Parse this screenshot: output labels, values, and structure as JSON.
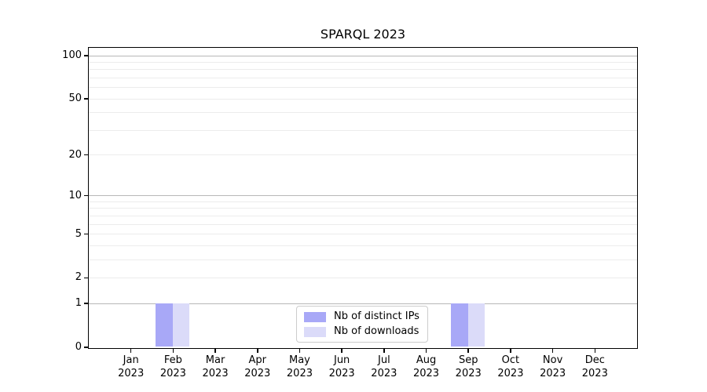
{
  "figure": {
    "background": "#ffffff"
  },
  "chart_data": {
    "type": "bar",
    "title": "SPARQL 2023",
    "xlabel": "",
    "ylabel": "",
    "categories": [
      "Jan 2023",
      "Feb 2023",
      "Mar 2023",
      "Apr 2023",
      "May 2023",
      "Jun 2023",
      "Jul 2023",
      "Aug 2023",
      "Sep 2023",
      "Oct 2023",
      "Nov 2023",
      "Dec 2023"
    ],
    "series": [
      {
        "name": "Nb of distinct IPs",
        "color": "#a8a8f7",
        "values": [
          0,
          1,
          0,
          0,
          0,
          0,
          0,
          0,
          1,
          0,
          0,
          0
        ]
      },
      {
        "name": "Nb of downloads",
        "color": "#dbdbf9",
        "values": [
          0,
          1,
          0,
          0,
          0,
          0,
          0,
          0,
          1,
          0,
          0,
          0
        ]
      }
    ],
    "yscale": "log1p",
    "ylim": [
      0,
      100
    ],
    "yticks": {
      "values": [
        0,
        1,
        2,
        5,
        10,
        20,
        50,
        100
      ],
      "labels": [
        "0",
        "1",
        "2",
        "5",
        "10",
        "20",
        "50",
        "100"
      ]
    },
    "minor_grid_values": [
      3,
      4,
      6,
      7,
      8,
      9,
      30,
      40,
      60,
      70,
      80,
      90
    ],
    "emphasized_grid_values": [
      1,
      10,
      100
    ],
    "grid": true,
    "legend_position": "lower center",
    "colors": {
      "grid_minor": "#ececec",
      "grid_major": "#b7b7b7",
      "axis": "#000000",
      "tick_label": "#000000"
    }
  }
}
